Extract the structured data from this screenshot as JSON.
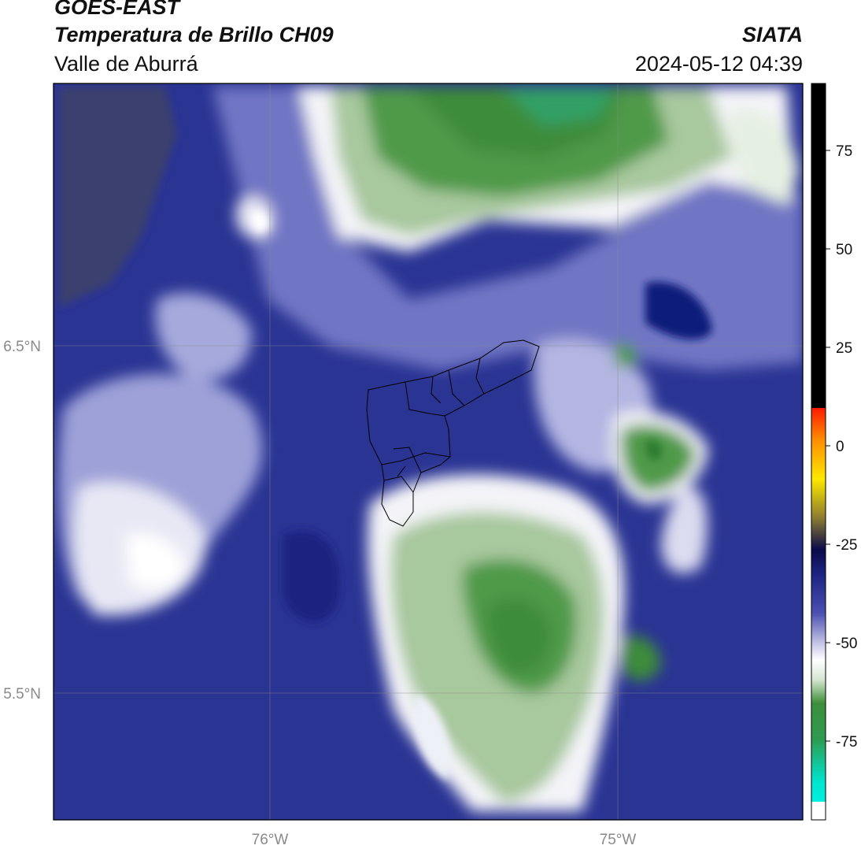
{
  "header": {
    "satellite": "GOES-EAST",
    "product": "Temperatura de Brillo CH09",
    "organization": "SIATA",
    "region": "Valle de Aburrá",
    "datetime": "2024-05-12 04:39"
  },
  "map": {
    "lat_ticks": [
      "6.5°N",
      "5.5°N"
    ],
    "lon_ticks": [
      "76°W",
      "75°W"
    ],
    "outline": "Valle de Aburrá municipalities",
    "features": [
      {
        "name": "northern-green-cold-region",
        "color": "#3d8f3c"
      },
      {
        "name": "southeastern-green-cold-region",
        "color": "#3d8f3c"
      },
      {
        "name": "eastern-cloud-cell",
        "color": "#3d8f3c"
      },
      {
        "name": "navy-warm-region",
        "color": "#1b2a8a"
      }
    ]
  },
  "colorbar": {
    "ticks": [
      "75",
      "50",
      "25",
      "0",
      "-25",
      "-50",
      "-75"
    ],
    "tick_values": [
      75,
      50,
      25,
      0,
      -25,
      -50,
      -75
    ],
    "range": [
      -95,
      92
    ],
    "colors": {
      "top_black": "#000000",
      "red": "#ff1a00",
      "orange": "#ff8c00",
      "yellow": "#ffe800",
      "olive": "#8a7a30",
      "dark_navy": "#0a0a4a",
      "navy": "#1a237e",
      "light_lavender": "#c8c8e8",
      "white": "#ffffff",
      "green": "#3d8f3c",
      "dark_green": "#2e7d32",
      "cyan": "#00e5d0"
    }
  }
}
